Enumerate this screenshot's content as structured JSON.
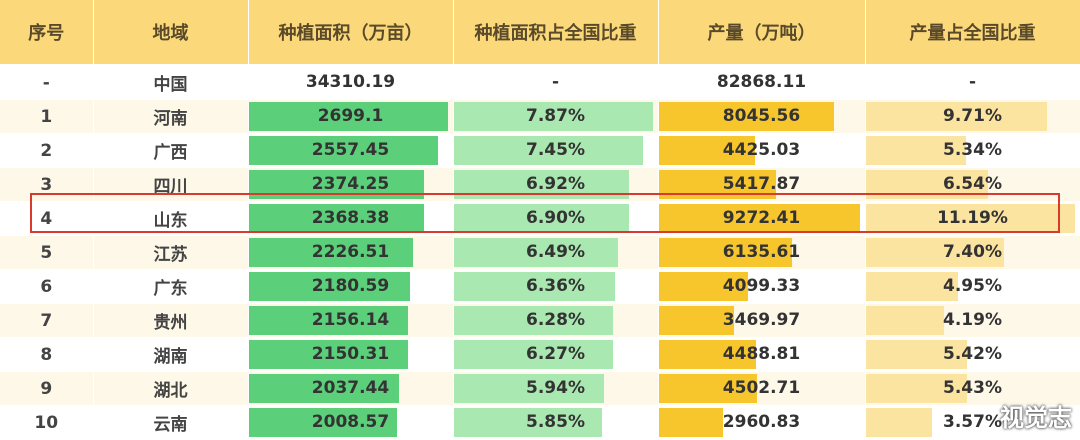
{
  "chart_data": {
    "type": "table",
    "columns": [
      "序号",
      "地域",
      "种植面积（万亩）",
      "种植面积占全国比重",
      "产量（万吨）",
      "产量占全国比重"
    ],
    "total": {
      "rank": "-",
      "region": "中国",
      "area": "34310.19",
      "area_share": "-",
      "production": "82868.11",
      "production_share": "-"
    },
    "rows": [
      {
        "rank": "1",
        "region": "河南",
        "area": 2699.1,
        "area_text": "2699.1",
        "area_share": "7.87%",
        "area_share_value": 7.87,
        "production": 8045.56,
        "production_text": "8045.56",
        "production_share": "9.71%",
        "production_share_value": 9.71
      },
      {
        "rank": "2",
        "region": "广西",
        "area": 2557.45,
        "area_text": "2557.45",
        "area_share": "7.45%",
        "area_share_value": 7.45,
        "production": 4425.03,
        "production_text": "4425.03",
        "production_share": "5.34%",
        "production_share_value": 5.34
      },
      {
        "rank": "3",
        "region": "四川",
        "area": 2374.25,
        "area_text": "2374.25",
        "area_share": "6.92%",
        "area_share_value": 6.92,
        "production": 5417.87,
        "production_text": "5417.87",
        "production_share": "6.54%",
        "production_share_value": 6.54
      },
      {
        "rank": "4",
        "region": "山东",
        "area": 2368.38,
        "area_text": "2368.38",
        "area_share": "6.90%",
        "area_share_value": 6.9,
        "production": 9272.41,
        "production_text": "9272.41",
        "production_share": "11.19%",
        "production_share_value": 11.19
      },
      {
        "rank": "5",
        "region": "江苏",
        "area": 2226.51,
        "area_text": "2226.51",
        "area_share": "6.49%",
        "area_share_value": 6.49,
        "production": 6135.61,
        "production_text": "6135.61",
        "production_share": "7.40%",
        "production_share_value": 7.4
      },
      {
        "rank": "6",
        "region": "广东",
        "area": 2180.59,
        "area_text": "2180.59",
        "area_share": "6.36%",
        "area_share_value": 6.36,
        "production": 4099.33,
        "production_text": "4099.33",
        "production_share": "4.95%",
        "production_share_value": 4.95
      },
      {
        "rank": "7",
        "region": "贵州",
        "area": 2156.14,
        "area_text": "2156.14",
        "area_share": "6.28%",
        "area_share_value": 6.28,
        "production": 3469.97,
        "production_text": "3469.97",
        "production_share": "4.19%",
        "production_share_value": 4.19
      },
      {
        "rank": "8",
        "region": "湖南",
        "area": 2150.31,
        "area_text": "2150.31",
        "area_share": "6.27%",
        "area_share_value": 6.27,
        "production": 4488.81,
        "production_text": "4488.81",
        "production_share": "5.42%",
        "production_share_value": 5.42
      },
      {
        "rank": "9",
        "region": "湖北",
        "area": 2037.44,
        "area_text": "2037.44",
        "area_share": "5.94%",
        "area_share_value": 5.94,
        "production": 4502.71,
        "production_text": "4502.71",
        "production_share": "5.43%",
        "production_share_value": 5.43
      },
      {
        "rank": "10",
        "region": "云南",
        "area": 2008.57,
        "area_text": "2008.57",
        "area_share": "5.85%",
        "area_share_value": 5.85,
        "production": 2960.83,
        "production_text": "2960.83",
        "production_share": "3.57%",
        "production_share_value": 3.57
      }
    ],
    "highlighted_rank": "4",
    "colors": {
      "header": "#fbd97a",
      "area_bar": "#5ccf7a",
      "area_share_bar": "#a9e8b0",
      "production_bar": "#f6c62c",
      "production_share_bar": "#fbe3a0",
      "highlight": "#d93a2e"
    }
  },
  "watermark": "视觉志"
}
